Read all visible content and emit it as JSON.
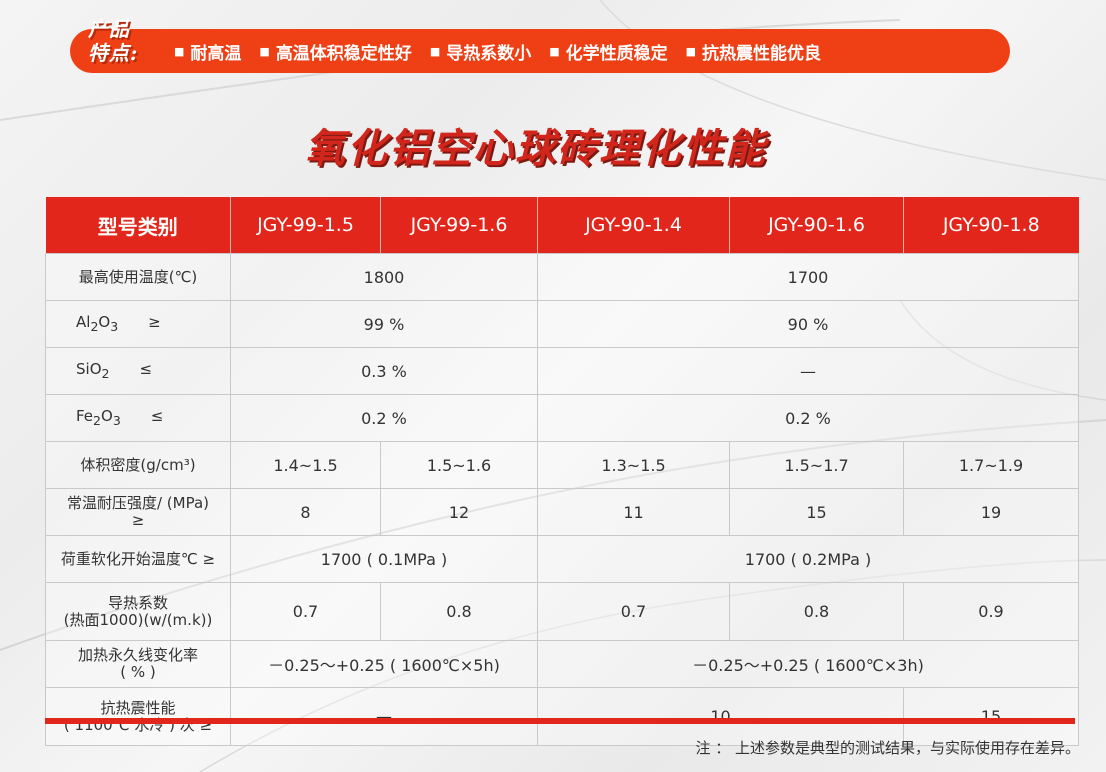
{
  "banner": {
    "label_line1": "产品",
    "label_line2": "特点:",
    "bullet": "■",
    "features": [
      "耐高温",
      "高温体积稳定性好",
      "导热系数小",
      "化学性质稳定",
      "抗热震性能优良"
    ]
  },
  "title": "氧化铝空心球砖理化性能",
  "table": {
    "header": [
      "型号类别",
      "JGY-99-1.5",
      "JGY-99-1.6",
      "JGY-90-1.4",
      "JGY-90-1.6",
      "JGY-90-1.8"
    ],
    "rows": {
      "max_temp": {
        "label": "最高使用温度(℃)",
        "v99": "1800",
        "v90": "1700"
      },
      "al2o3": {
        "label_main": "Al",
        "sub1": "2",
        "label_mid": "O",
        "sub2": "3",
        "symbol": "≥",
        "v99": "99 %",
        "v90": "90 %"
      },
      "sio2": {
        "label_main": "SiO",
        "sub1": "2",
        "symbol": "≤",
        "v99": "0.3 %",
        "v90": "—"
      },
      "fe2o3": {
        "label_main": "Fe",
        "sub1": "2",
        "label_mid": "O",
        "sub2": "3",
        "symbol": "≤",
        "v99": "0.2 %",
        "v90": "0.2 %"
      },
      "density": {
        "label": "体积密度(g/cm³)",
        "values": [
          "1.4~1.5",
          "1.5~1.6",
          "1.3~1.5",
          "1.5~1.7",
          "1.7~1.9"
        ]
      },
      "strength": {
        "label_line1": "常温耐压强度/ (MPa)",
        "label_line2": "≥",
        "values": [
          "8",
          "12",
          "11",
          "15",
          "19"
        ]
      },
      "softening": {
        "label": "荷重软化开始温度℃ ≥",
        "v99": "1700 ( 0.1MPa )",
        "v90": "1700 ( 0.2MPa )"
      },
      "conductivity": {
        "label_line1": "导热系数",
        "label_line2": "(热面1000)(w/(m.k))",
        "values": [
          "0.7",
          "0.8",
          "0.7",
          "0.8",
          "0.9"
        ]
      },
      "linear_change": {
        "label_line1": "加热永久线变化率",
        "label_line2": "( % )",
        "v99": "－0.25～+0.25 ( 1600℃×5h)",
        "v90": "－0.25～+0.25 ( 1600℃×3h)"
      },
      "thermal_shock": {
        "label_line1": "抗热震性能",
        "label_line2": "( 1100℃ 水冷 ) 次 ≥",
        "v99": "—",
        "v90_a": "10",
        "v90_b": "15"
      }
    }
  },
  "note": "注 ： 上述参数是典型的测试结果，与实际使用存在差异。",
  "colors": {
    "accent": "#e3261b",
    "banner": "#ef3f14"
  }
}
